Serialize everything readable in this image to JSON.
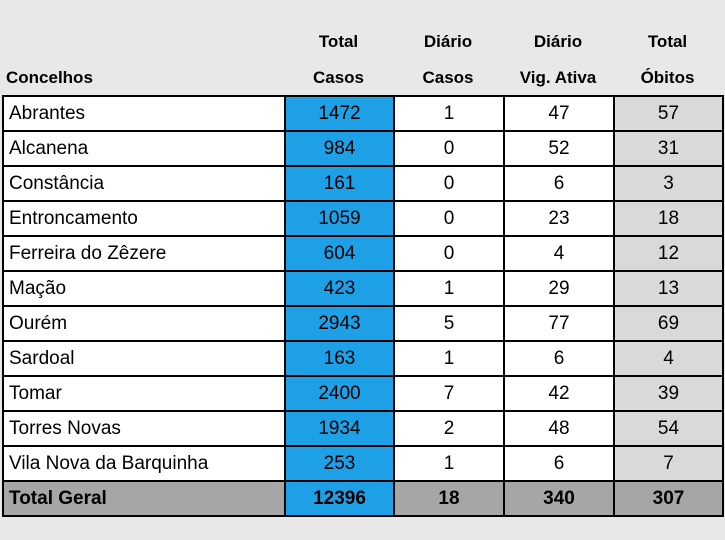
{
  "headers": {
    "concelhos": "Concelhos",
    "total_casos_line1": "Total",
    "total_casos_line2": "Casos",
    "diario_casos_line1": "Diário",
    "diario_casos_line2": "Casos",
    "vig_ativa_line1": "Diário",
    "vig_ativa_line2": "Vig. Ativa",
    "total_obitos_line1": "Total",
    "total_obitos_line2": "Óbitos"
  },
  "rows": [
    {
      "name": "Abrantes",
      "total_casos": "1472",
      "diario_casos": "1",
      "vig_ativa": "47",
      "obitos": "57"
    },
    {
      "name": "Alcanena",
      "total_casos": "984",
      "diario_casos": "0",
      "vig_ativa": "52",
      "obitos": "31"
    },
    {
      "name": "Constância",
      "total_casos": "161",
      "diario_casos": "0",
      "vig_ativa": "6",
      "obitos": "3"
    },
    {
      "name": "Entroncamento",
      "total_casos": "1059",
      "diario_casos": "0",
      "vig_ativa": "23",
      "obitos": "18"
    },
    {
      "name": "Ferreira do Zêzere",
      "total_casos": "604",
      "diario_casos": "0",
      "vig_ativa": "4",
      "obitos": "12"
    },
    {
      "name": "Mação",
      "total_casos": "423",
      "diario_casos": "1",
      "vig_ativa": "29",
      "obitos": "13"
    },
    {
      "name": "Ourém",
      "total_casos": "2943",
      "diario_casos": "5",
      "vig_ativa": "77",
      "obitos": "69"
    },
    {
      "name": "Sardoal",
      "total_casos": "163",
      "diario_casos": "1",
      "vig_ativa": "6",
      "obitos": "4"
    },
    {
      "name": "Tomar",
      "total_casos": "2400",
      "diario_casos": "7",
      "vig_ativa": "42",
      "obitos": "39"
    },
    {
      "name": "Torres Novas",
      "total_casos": "1934",
      "diario_casos": "2",
      "vig_ativa": "48",
      "obitos": "54"
    },
    {
      "name": "Vila Nova da Barquinha",
      "total_casos": "253",
      "diario_casos": "1",
      "vig_ativa": "6",
      "obitos": "7"
    }
  ],
  "total": {
    "name": "Total Geral",
    "total_casos": "12396",
    "diario_casos": "18",
    "vig_ativa": "340",
    "obitos": "307"
  },
  "colors": {
    "total_casos_fill": "#1ea0e6",
    "obitos_fill": "#d9d9d9",
    "total_row_fill": "#a6a6a6"
  }
}
